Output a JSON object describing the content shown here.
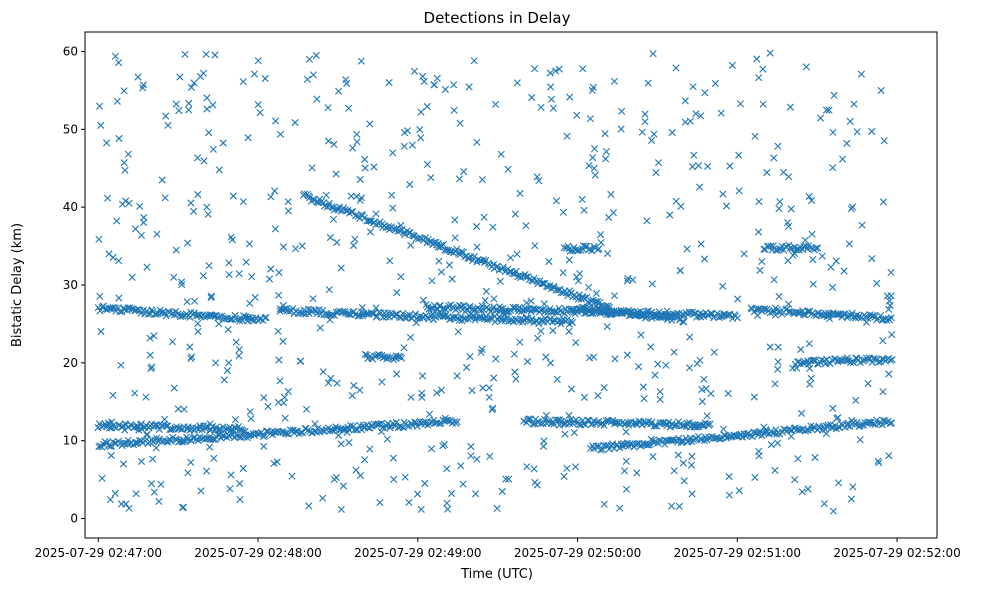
{
  "chart_data": {
    "type": "scatter",
    "title": "Detections in Delay",
    "xlabel": "Time (UTC)",
    "ylabel": "Bistatic Delay (km)",
    "marker": "x",
    "color": "#1f77b4",
    "x_unit": "time (UTC), 2025-07-29",
    "xlim": [
      "02:46:55",
      "02:52:15"
    ],
    "ylim": [
      -2.5,
      62.5
    ],
    "x_ticks": [
      "2025-07-29 02:47:00",
      "2025-07-29 02:48:00",
      "2025-07-29 02:49:00",
      "2025-07-29 02:50:00",
      "2025-07-29 02:51:00",
      "2025-07-29 02:52:00"
    ],
    "y_ticks": [
      0,
      10,
      20,
      30,
      40,
      50,
      60
    ],
    "grid": false,
    "tracks": [
      {
        "from": [
          "02:47:00",
          27.0
        ],
        "to": [
          "02:48:03",
          25.5
        ]
      },
      {
        "from": [
          "02:48:08",
          26.7
        ],
        "to": [
          "02:49:58",
          25.2
        ]
      },
      {
        "from": [
          "02:49:03",
          27.2
        ],
        "to": [
          "02:51:00",
          26.0
        ]
      },
      {
        "from": [
          "02:48:17",
          41.5
        ],
        "to": [
          "02:50:12",
          27.0
        ]
      },
      {
        "from": [
          "02:49:58",
          27.0
        ],
        "to": [
          "02:50:40",
          25.6
        ]
      },
      {
        "from": [
          "02:51:05",
          26.9
        ],
        "to": [
          "02:51:58",
          25.7
        ]
      },
      {
        "from": [
          "02:47:00",
          9.5
        ],
        "to": [
          "02:49:15",
          12.5
        ]
      },
      {
        "from": [
          "02:47:00",
          12.0
        ],
        "to": [
          "02:47:55",
          11.5
        ]
      },
      {
        "from": [
          "02:49:40",
          12.5
        ],
        "to": [
          "02:50:50",
          12.0
        ]
      },
      {
        "from": [
          "02:50:05",
          9.0
        ],
        "to": [
          "02:51:58",
          12.5
        ]
      },
      {
        "from": [
          "02:51:22",
          20.0
        ],
        "to": [
          "02:51:58",
          20.5
        ]
      },
      {
        "from": [
          "02:51:10",
          34.8
        ],
        "to": [
          "02:51:30",
          34.8
        ]
      },
      {
        "from": [
          "02:48:40",
          20.8
        ],
        "to": [
          "02:48:54",
          20.6
        ]
      },
      {
        "from": [
          "02:49:55",
          34.7
        ],
        "to": [
          "02:50:08",
          34.7
        ]
      }
    ],
    "noise": {
      "count": 700,
      "x_range": [
        "02:47:00",
        "02:51:58"
      ],
      "y_range": [
        0.8,
        59.8
      ]
    }
  }
}
